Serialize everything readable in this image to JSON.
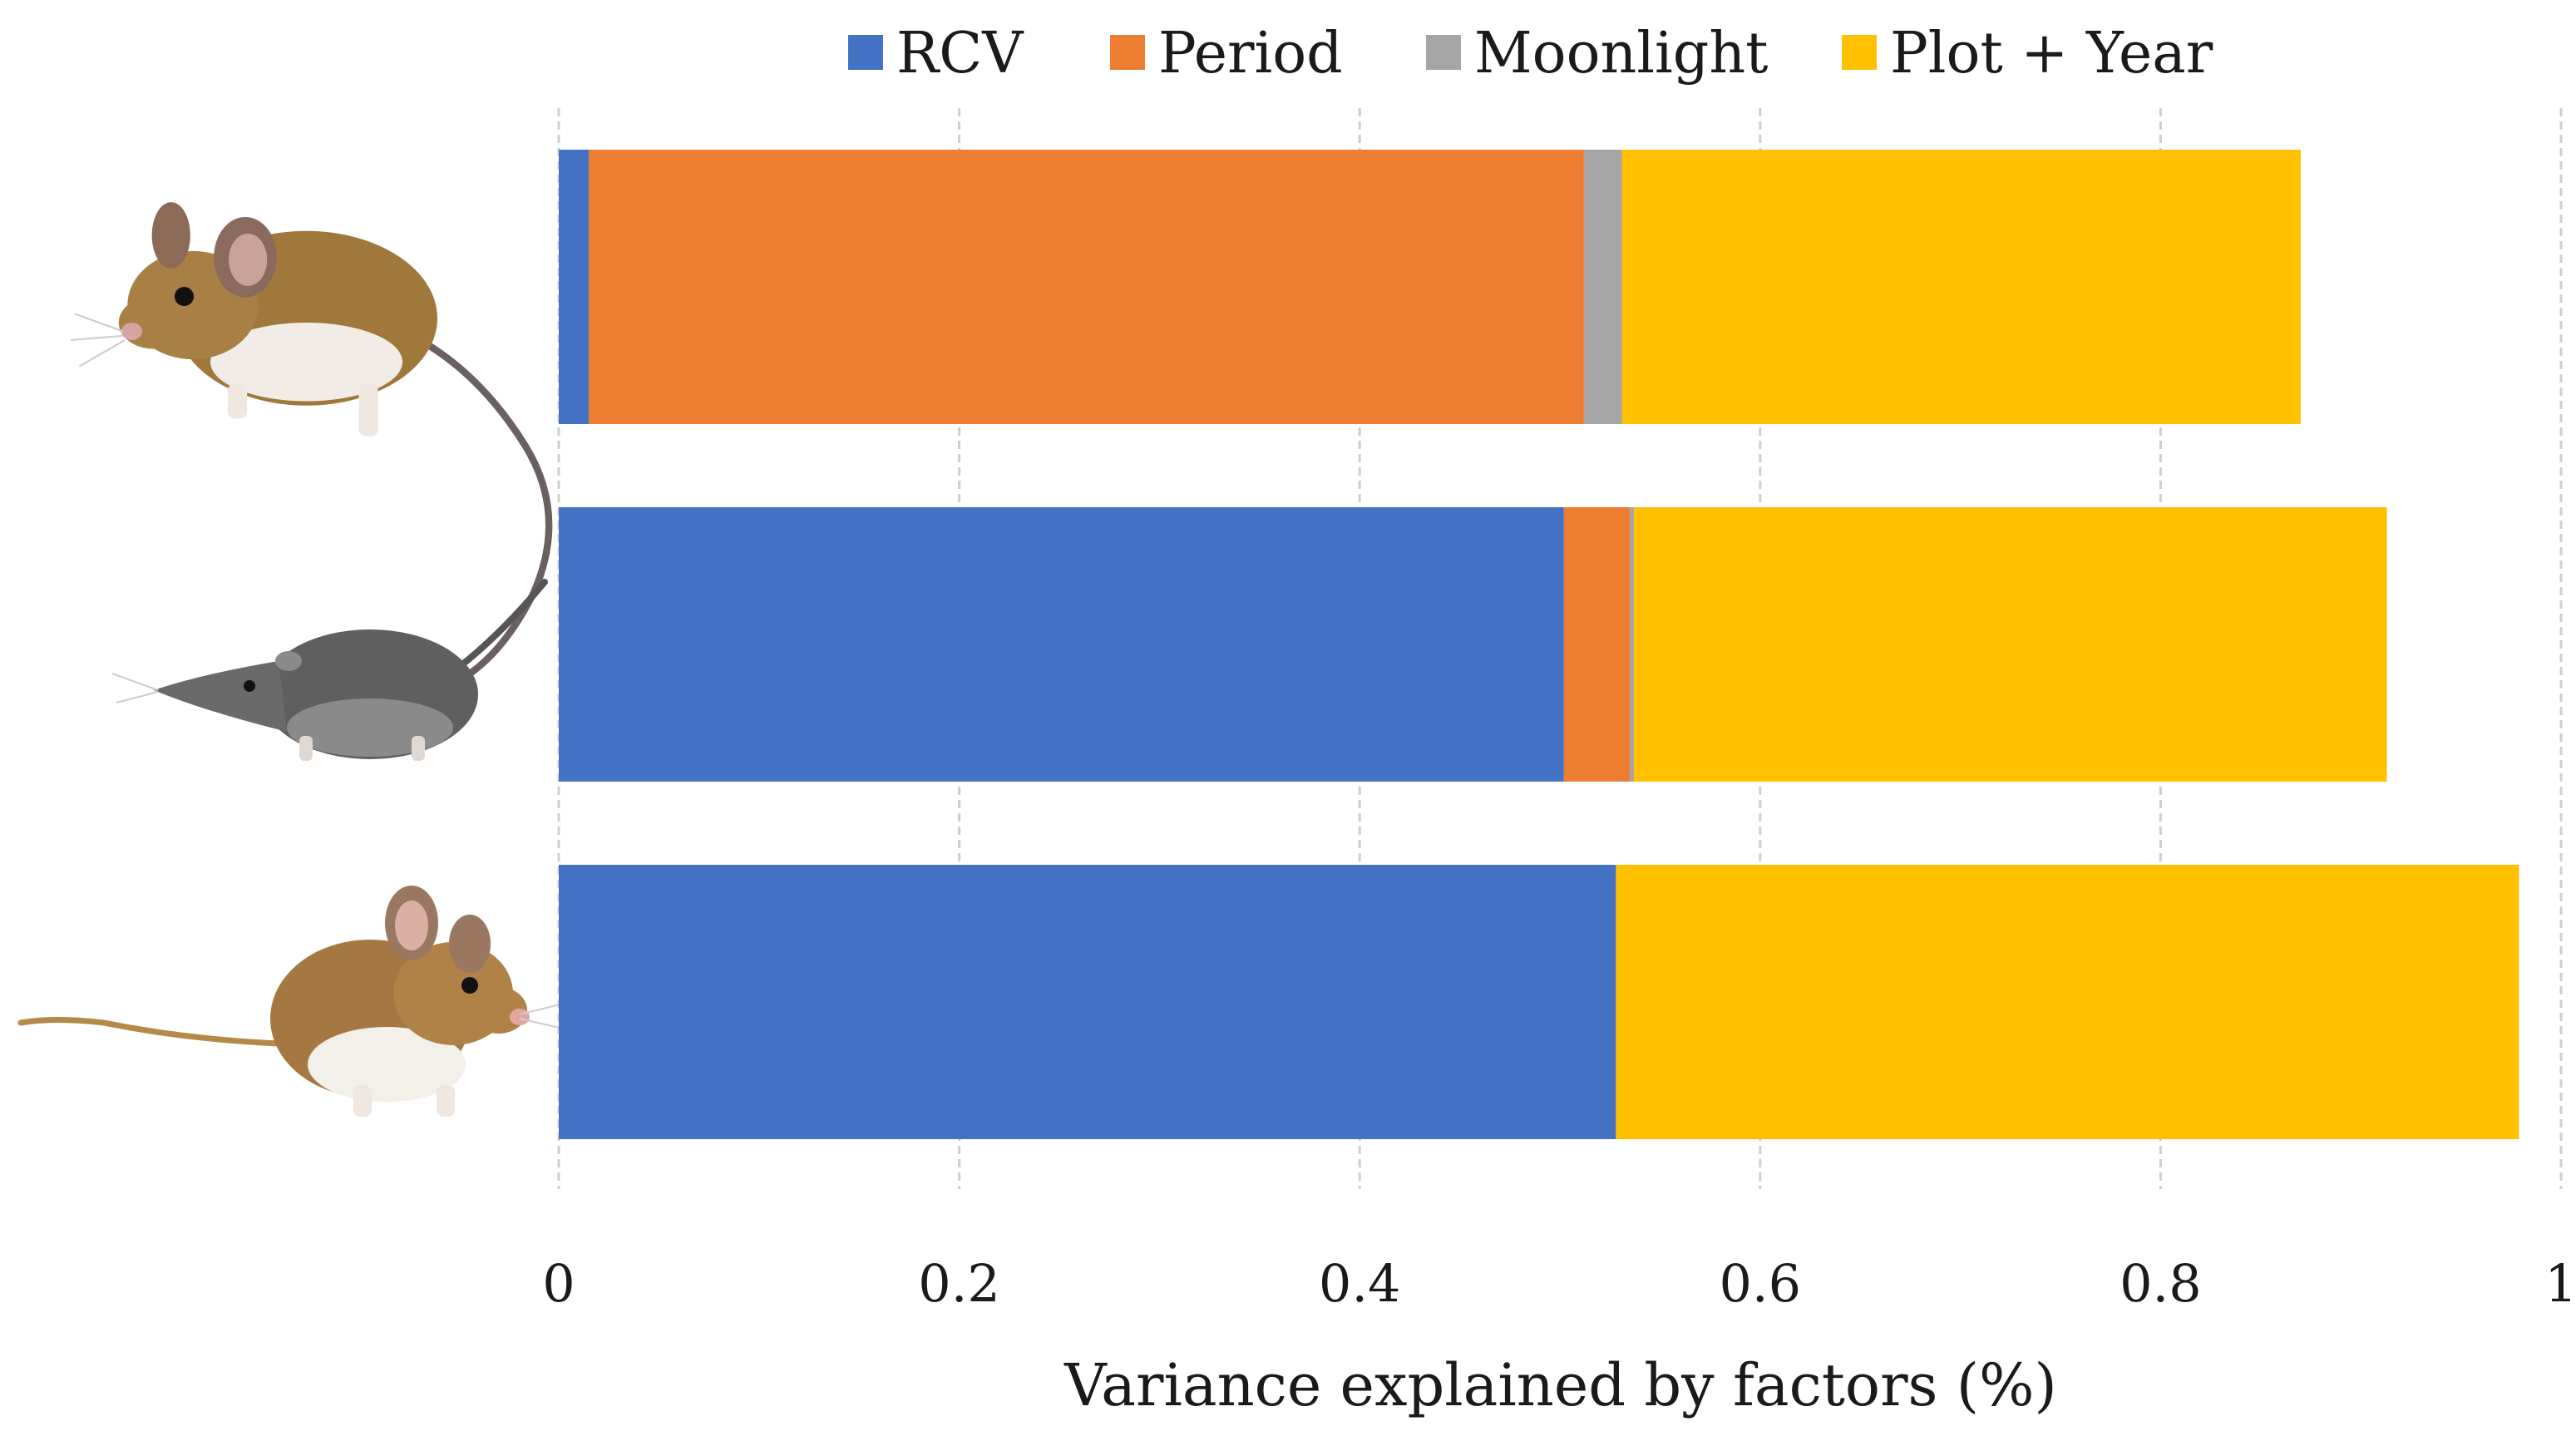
{
  "chart_data": {
    "type": "bar",
    "orientation": "horizontal",
    "stacked": true,
    "categories": [
      "",
      "",
      ""
    ],
    "category_icons": [
      "mouse-icon",
      "shrew-icon",
      "harvest-mouse-icon"
    ],
    "series": [
      {
        "name": "RCV",
        "color": "#4472C4",
        "values": [
          0.015,
          0.502,
          0.528
        ]
      },
      {
        "name": "Period",
        "color": "#ED7D31",
        "values": [
          0.497,
          0.033,
          0.0
        ]
      },
      {
        "name": "Moonlight",
        "color": "#A5A5A5",
        "values": [
          0.019,
          0.002,
          0.0
        ]
      },
      {
        "name": "Plot + Year",
        "color": "#FFC000",
        "values": [
          0.339,
          0.376,
          0.451
        ]
      }
    ],
    "xlabel": "Variance explained by factors (%)",
    "ylabel": "",
    "xlim": [
      0,
      1
    ],
    "xticks": [
      0,
      0.2,
      0.4,
      0.6,
      0.8,
      1
    ],
    "xtick_labels": [
      "0",
      "0.2",
      "0.4",
      "0.6",
      "0.8",
      "1"
    ],
    "grid": "vertical-dashed",
    "legend_position": "top"
  }
}
